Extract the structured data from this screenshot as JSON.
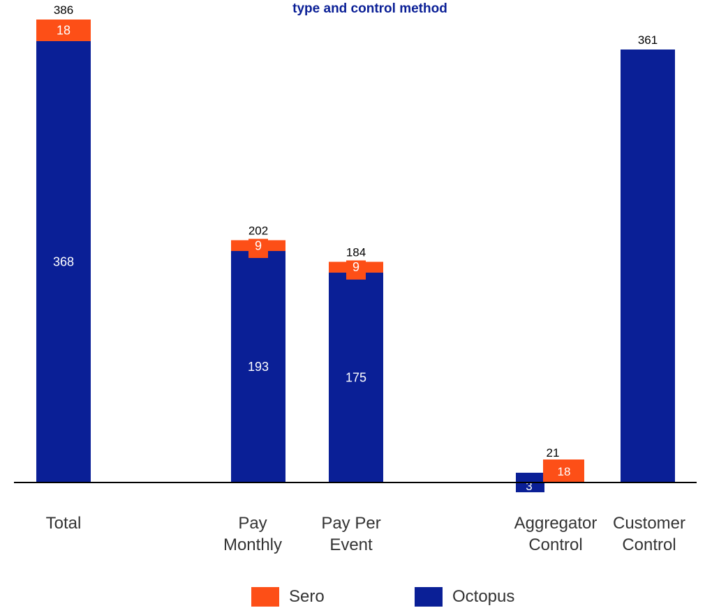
{
  "chart_data": {
    "type": "bar",
    "title": "type and control method",
    "categories": [
      "Total",
      "Pay\nMonthly",
      "Pay Per\nEvent",
      "Aggregator\nControl",
      "Customer\nControl"
    ],
    "series": [
      {
        "name": "Octopus",
        "values": [
          368,
          193,
          175,
          3,
          361
        ]
      },
      {
        "name": "Sero",
        "values": [
          18,
          9,
          9,
          18,
          0
        ]
      }
    ],
    "totals": [
      386,
      202,
      184,
      21,
      361
    ],
    "segment_labels": {
      "Octopus": [
        "368",
        "193",
        "175",
        "3",
        ""
      ],
      "Sero": [
        "18",
        "9",
        "9",
        "18",
        ""
      ]
    },
    "ylim": [
      0,
      386
    ],
    "grid": false,
    "legend_position": "bottom",
    "colors": {
      "Octopus": "#0a1f96",
      "Sero": "#fd4f17",
      "axis": "#000000"
    }
  }
}
